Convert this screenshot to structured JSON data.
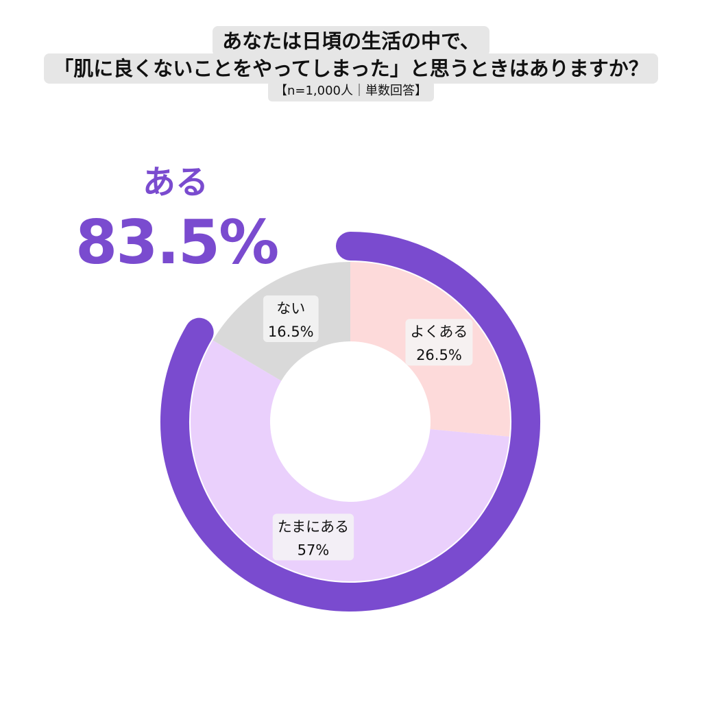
{
  "chart_data": {
    "type": "pie",
    "title_line1": "あなたは日頃の生活の中で、",
    "title_line2": "「肌に良くないことをやってしまった」と思うときはありますか？",
    "subtitle": "【n=1,000人｜単数回答】",
    "categories": [
      "よくある",
      "たまにある",
      "ない"
    ],
    "values": [
      26.5,
      57,
      16.5
    ],
    "value_labels": [
      "26.5%",
      "57%",
      "16.5%"
    ],
    "colors": [
      "#fddada",
      "#ead0fc",
      "#d9d9d9"
    ],
    "highlight": {
      "label": "ある",
      "value_text": "83.5%",
      "value": 83.5,
      "color": "#7a4bcf"
    }
  }
}
